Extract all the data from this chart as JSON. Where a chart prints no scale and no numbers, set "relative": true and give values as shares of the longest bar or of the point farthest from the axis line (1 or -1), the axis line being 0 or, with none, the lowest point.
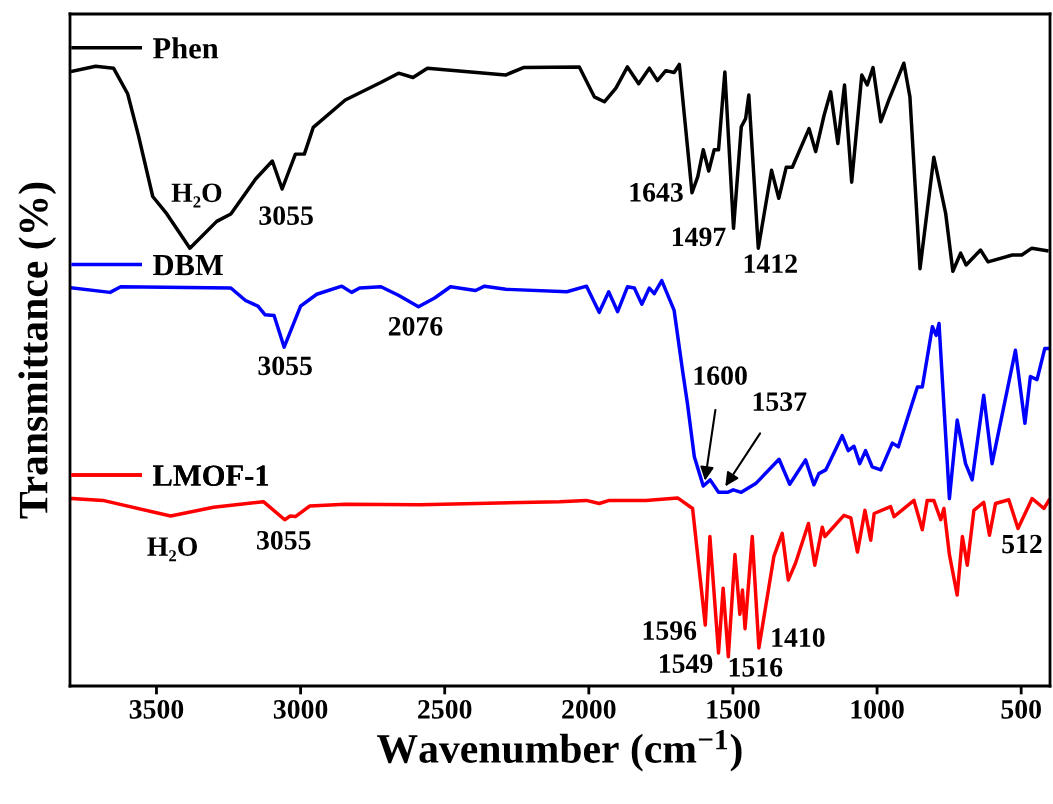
{
  "chart_data": {
    "type": "line",
    "relative": true,
    "xlabel": "Wavenumber (cm$^{−1}$)",
    "ylabel": "Transmittance (%)",
    "xlim": [
      3800,
      400
    ],
    "xticks": [
      3500,
      3000,
      2500,
      2000,
      1500,
      1000,
      500
    ],
    "tick_labels": "x",
    "grid": false,
    "legend": "left",
    "marker": "none",
    "line_style": "solid",
    "series": [
      {
        "name": "Phen",
        "color": "#000000",
        "x": [
          3791,
          3711,
          3649,
          3600,
          3562,
          3513,
          3464,
          3384,
          3291,
          3242,
          3156,
          3098,
          3064,
          3018,
          2987,
          2956,
          2845,
          2722,
          2660,
          2610,
          2560,
          2289,
          2227,
          2033,
          1981,
          1946,
          1906,
          1866,
          1827,
          1790,
          1762,
          1733,
          1704,
          1686,
          1642,
          1622,
          1603,
          1584,
          1565,
          1550,
          1528,
          1498,
          1471,
          1456,
          1445,
          1412,
          1366,
          1341,
          1315,
          1294,
          1236,
          1213,
          1184,
          1161,
          1136,
          1113,
          1088,
          1053,
          1034,
          1014,
          987,
          959,
          907,
          886,
          851,
          803,
          762,
          737,
          710,
          691,
          641,
          615,
          531,
          498,
          463,
          411
        ],
        "values": [
          0.987,
          0.995,
          0.992,
          0.951,
          0.883,
          0.786,
          0.758,
          0.703,
          0.746,
          0.758,
          0.814,
          0.843,
          0.798,
          0.854,
          0.854,
          0.897,
          0.941,
          0.969,
          0.984,
          0.977,
          0.992,
          0.981,
          0.993,
          0.994,
          0.946,
          0.938,
          0.96,
          0.994,
          0.967,
          0.992,
          0.972,
          0.988,
          0.985,
          0.998,
          0.792,
          0.818,
          0.861,
          0.827,
          0.861,
          0.861,
          0.986,
          0.735,
          0.898,
          0.911,
          0.949,
          0.703,
          0.828,
          0.783,
          0.833,
          0.833,
          0.895,
          0.858,
          0.916,
          0.954,
          0.871,
          0.965,
          0.809,
          0.981,
          0.965,
          0.993,
          0.906,
          0.941,
          1.0,
          0.946,
          0.67,
          0.849,
          0.759,
          0.666,
          0.695,
          0.676,
          0.7,
          0.681,
          0.692,
          0.692,
          0.703,
          0.699
        ]
      },
      {
        "name": "DBM",
        "color": "#0000ff",
        "x": [
          3791,
          3661,
          3624,
          3242,
          3191,
          3148,
          3123,
          3092,
          3057,
          3000,
          2944,
          2857,
          2823,
          2795,
          2721,
          2659,
          2591,
          2535,
          2480,
          2393,
          2362,
          2288,
          2076,
          2008,
          1964,
          1931,
          1900,
          1866,
          1842,
          1816,
          1790,
          1773,
          1747,
          1704,
          1675,
          1658,
          1634,
          1603,
          1579,
          1550,
          1519,
          1499,
          1471,
          1421,
          1340,
          1303,
          1248,
          1219,
          1202,
          1178,
          1121,
          1100,
          1080,
          1060,
          1040,
          1017,
          987,
          947,
          926,
          860,
          843,
          808,
          795,
          785,
          749,
          722,
          693,
          670,
          630,
          601,
          520,
          487,
          468,
          445,
          418,
          404
        ],
        "values": [
          0.639,
          0.632,
          0.641,
          0.639,
          0.619,
          0.61,
          0.596,
          0.595,
          0.544,
          0.61,
          0.629,
          0.642,
          0.632,
          0.639,
          0.641,
          0.627,
          0.609,
          0.623,
          0.641,
          0.635,
          0.642,
          0.637,
          0.633,
          0.642,
          0.6,
          0.633,
          0.601,
          0.641,
          0.639,
          0.613,
          0.639,
          0.63,
          0.651,
          0.603,
          0.507,
          0.454,
          0.368,
          0.321,
          0.331,
          0.311,
          0.311,
          0.315,
          0.311,
          0.325,
          0.364,
          0.324,
          0.363,
          0.323,
          0.341,
          0.347,
          0.402,
          0.378,
          0.385,
          0.357,
          0.378,
          0.352,
          0.347,
          0.39,
          0.384,
          0.48,
          0.48,
          0.577,
          0.563,
          0.582,
          0.301,
          0.427,
          0.357,
          0.331,
          0.467,
          0.357,
          0.539,
          0.422,
          0.497,
          0.492,
          0.542,
          0.542
        ]
      },
      {
        "name": "LMOF-1",
        "color": "#ff0000",
        "x": [
          3791,
          3686,
          3451,
          3302,
          3129,
          3055,
          3036,
          3018,
          2968,
          2845,
          2585,
          2102,
          2009,
          1964,
          1929,
          1802,
          1692,
          1640,
          1596,
          1580,
          1550,
          1534,
          1516,
          1493,
          1476,
          1467,
          1458,
          1433,
          1410,
          1358,
          1329,
          1308,
          1283,
          1238,
          1216,
          1190,
          1181,
          1115,
          1091,
          1068,
          1042,
          1022,
          1010,
          953,
          941,
          872,
          843,
          826,
          803,
          779,
          768,
          749,
          722,
          704,
          687,
          664,
          630,
          610,
          589,
          543,
          511,
          462,
          421,
          404
        ],
        "values": [
          0.301,
          0.298,
          0.273,
          0.287,
          0.296,
          0.267,
          0.273,
          0.272,
          0.289,
          0.292,
          0.291,
          0.296,
          0.298,
          0.293,
          0.298,
          0.298,
          0.302,
          0.285,
          0.098,
          0.24,
          0.053,
          0.157,
          0.047,
          0.211,
          0.115,
          0.154,
          0.092,
          0.24,
          0.061,
          0.208,
          0.245,
          0.17,
          0.197,
          0.261,
          0.194,
          0.255,
          0.24,
          0.274,
          0.27,
          0.215,
          0.282,
          0.234,
          0.277,
          0.288,
          0.272,
          0.298,
          0.251,
          0.298,
          0.298,
          0.267,
          0.285,
          0.211,
          0.146,
          0.24,
          0.194,
          0.282,
          0.295,
          0.242,
          0.293,
          0.299,
          0.253,
          0.301,
          0.285,
          0.298
        ]
      }
    ],
    "annotations": [
      {
        "text": "H₂O",
        "x": 3384,
        "y": 0.703
      },
      {
        "text": "3055",
        "x": 3064,
        "y": 0.798
      },
      {
        "text": "1643",
        "x": 1642,
        "y": 0.792
      },
      {
        "text": "1497",
        "x": 1498,
        "y": 0.735
      },
      {
        "text": "1412",
        "x": 1412,
        "y": 0.703
      },
      {
        "text": "3055",
        "x": 3057,
        "y": 0.544
      },
      {
        "text": "2076",
        "x": 2591,
        "y": 0.609
      },
      {
        "text": "1600",
        "x": 1600,
        "y": 0.321
      },
      {
        "text": "1537",
        "x": 1537,
        "y": 0.313
      },
      {
        "text": "H₂O",
        "x": 3451,
        "y": 0.273
      },
      {
        "text": "3055",
        "x": 3055,
        "y": 0.267
      },
      {
        "text": "1596",
        "x": 1596,
        "y": 0.098
      },
      {
        "text": "1549",
        "x": 1550,
        "y": 0.053
      },
      {
        "text": "1516",
        "x": 1516,
        "y": 0.047
      },
      {
        "text": "1410",
        "x": 1410,
        "y": 0.061
      },
      {
        "text": "512",
        "x": 511,
        "y": 0.253
      }
    ]
  }
}
